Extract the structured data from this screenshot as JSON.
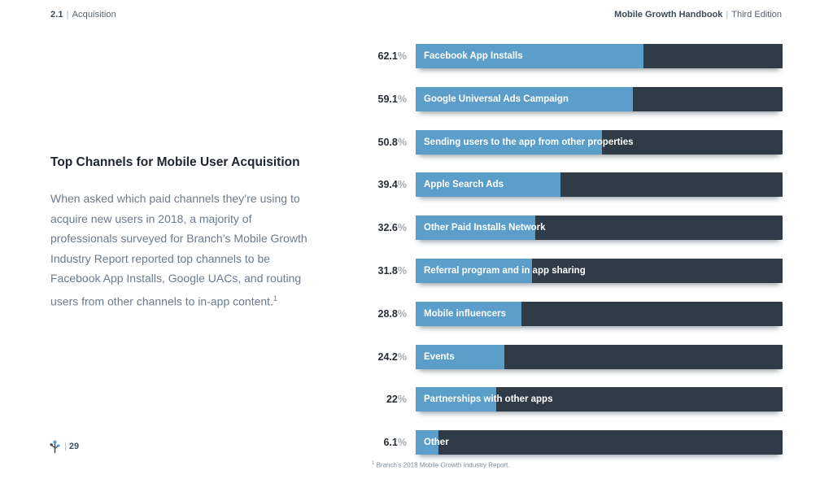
{
  "header": {
    "section_number": "2.1",
    "divider": "|",
    "section_name": "Acquisition",
    "book_title": "Mobile Growth Handbook",
    "edition": "Third Edition"
  },
  "sidebar": {
    "heading": "Top Channels for Mobile User Acquisition",
    "paragraph": "When asked which paid channels they’re using to acquire new users in 2018, a majority of professionals surveyed for Branch’s Mobile Growth Industry Report reported top channels to be Facebook App Installs, Google UACs, and routing users from other channels to in-app content.",
    "footnote_marker": "1"
  },
  "chart_data": {
    "type": "bar",
    "orientation": "horizontal",
    "categories": [
      "Facebook App Installs",
      "Google Universal Ads Campaign",
      "Sending users to the app from other properties",
      "Apple Search Ads",
      "Other Paid Installs Network",
      "Referral program and in app sharing",
      "Mobile influencers",
      "Events",
      "Partnerships with other apps",
      "Other"
    ],
    "values": [
      62.1,
      59.1,
      50.8,
      39.4,
      32.6,
      31.8,
      28.8,
      24.2,
      22,
      6.1
    ],
    "value_labels": [
      "62.1%",
      "59.1%",
      "50.8%",
      "39.4%",
      "32.6%",
      "31.8%",
      "28.8%",
      "24.2%",
      "22%",
      "6.1%"
    ],
    "xlim": [
      0,
      100
    ],
    "title": "",
    "xlabel": "",
    "ylabel": "",
    "legend": "none",
    "grid": false,
    "colors": {
      "fill_blue": "#5b9ec9",
      "track_dark": "#2f3b46"
    },
    "footnote_marker": "1",
    "footnote": "Branch’s 2018 Mobile Growth Industry Report."
  },
  "footer": {
    "logo_icon": "branch-logo-icon",
    "divider": "|",
    "page_number": "29"
  }
}
